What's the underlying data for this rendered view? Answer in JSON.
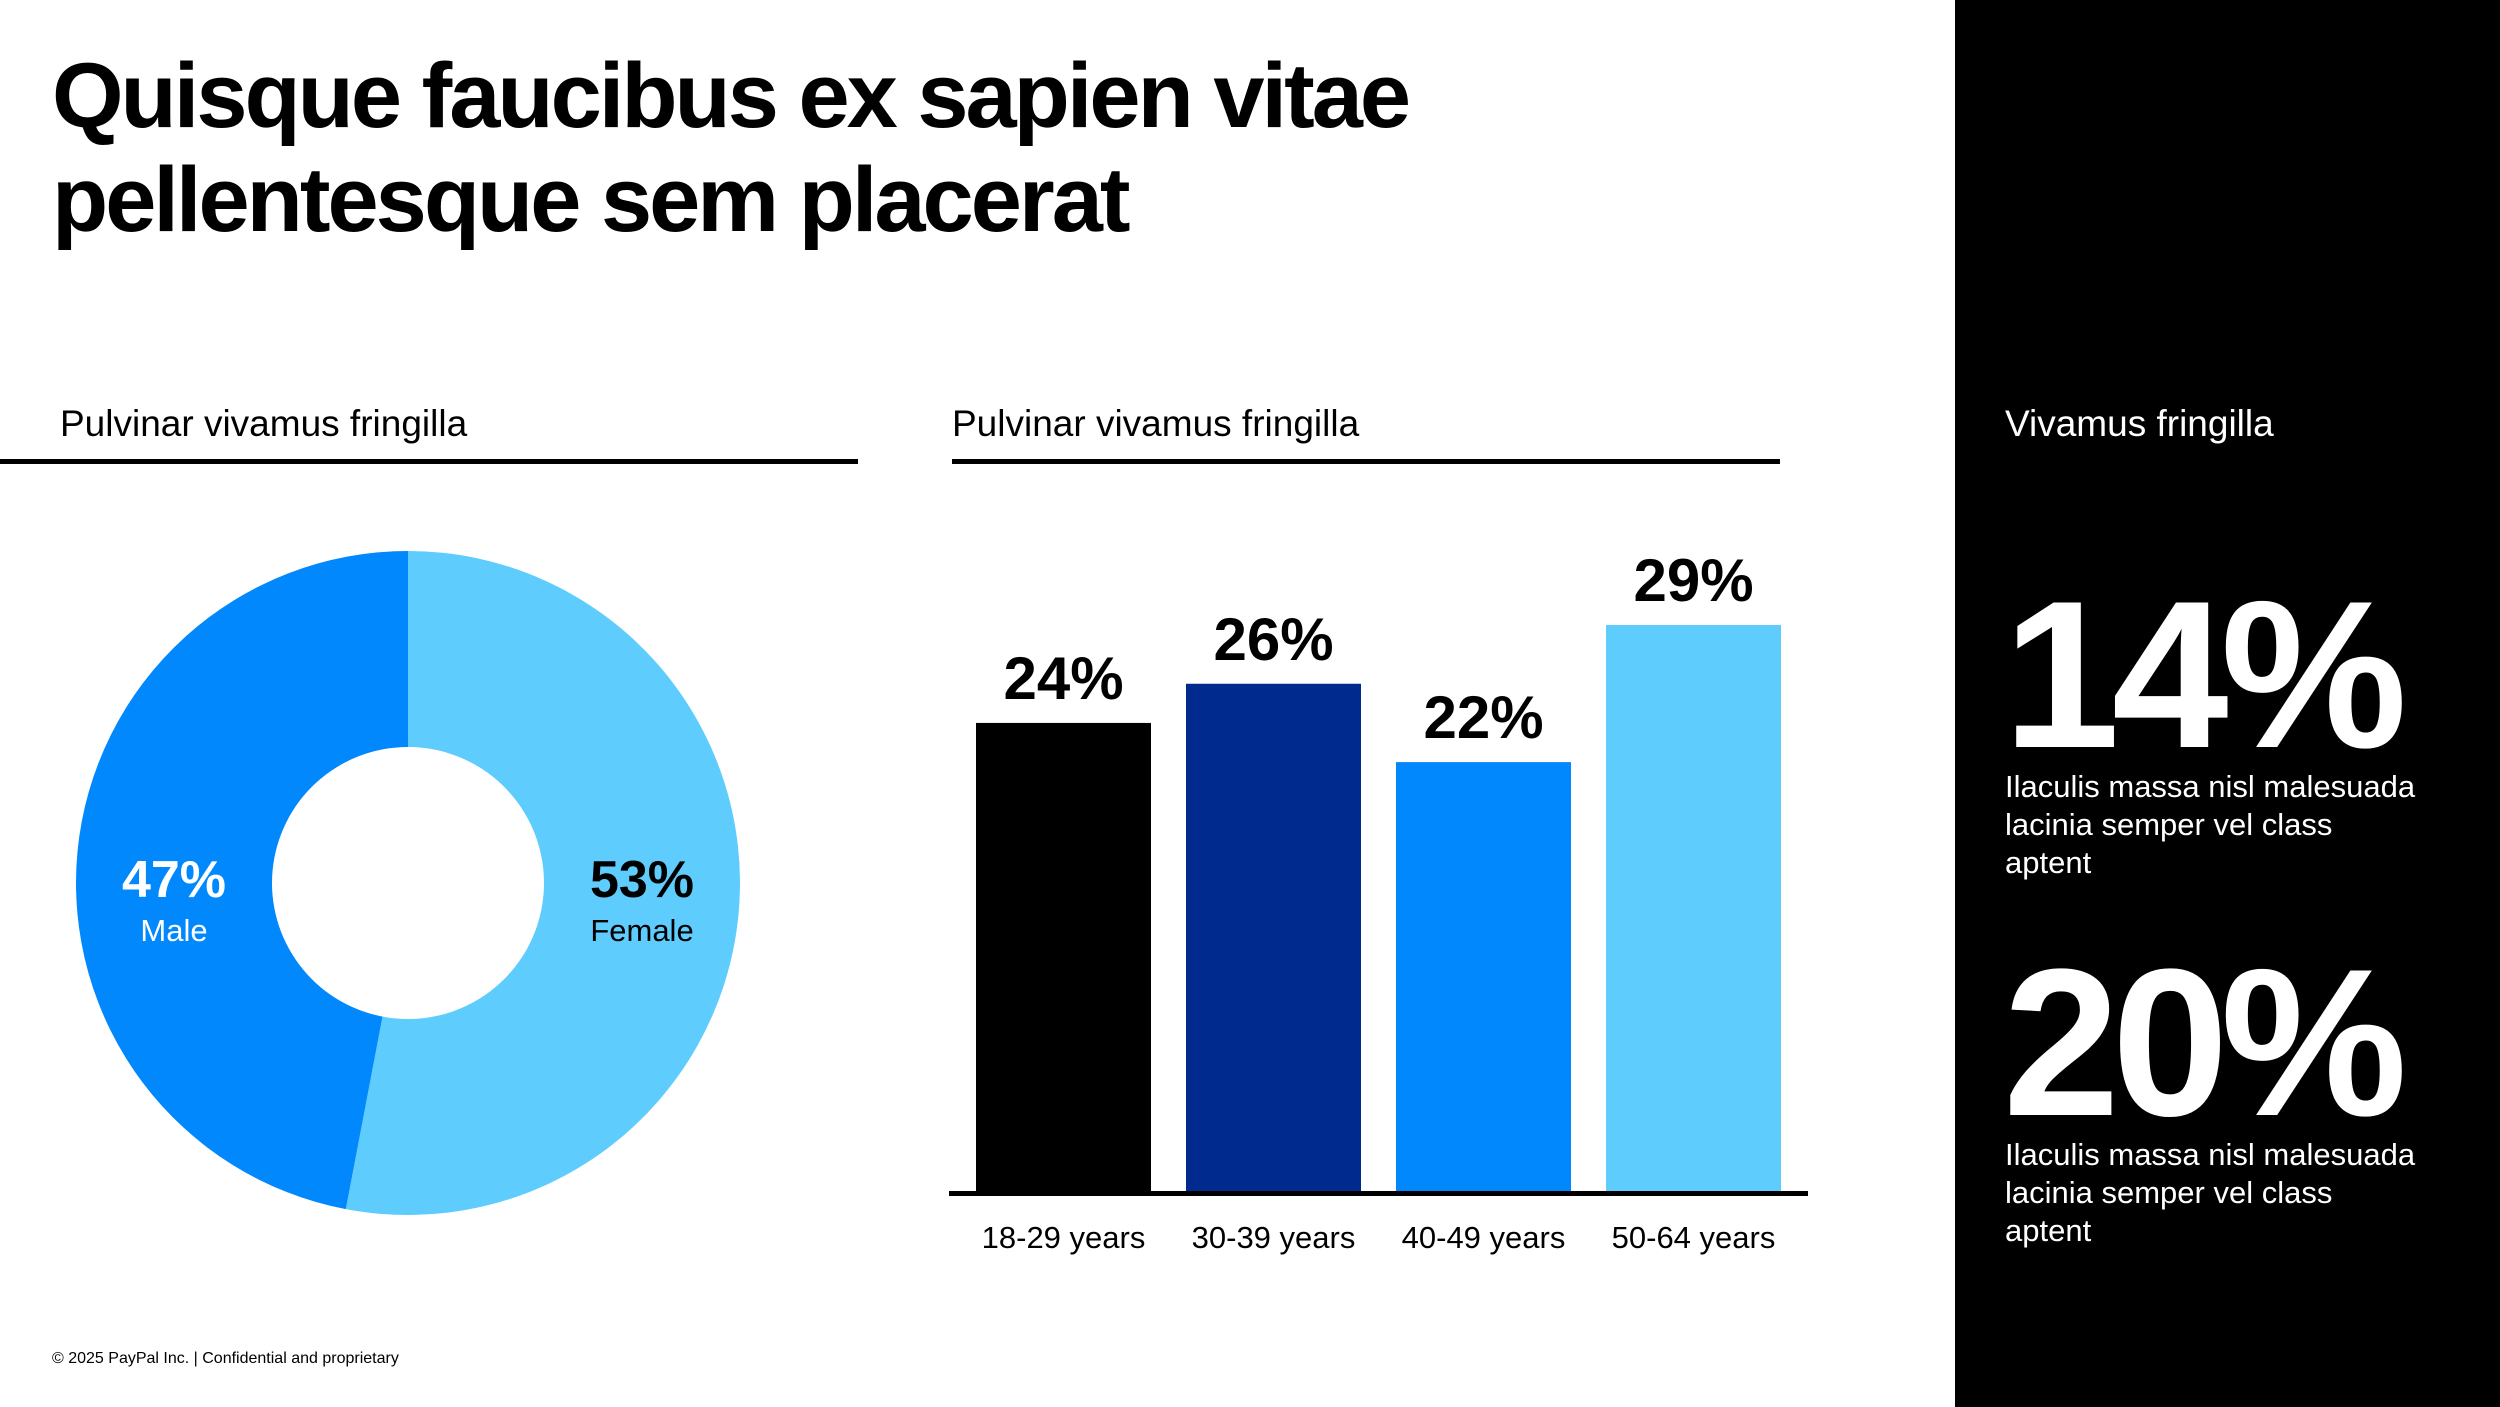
{
  "title_line1": "Quisque faucibus ex sapien vitae",
  "title_line2": "pellentesque sem placerat",
  "footer": "© 2025 PayPal Inc. | Confidential and proprietary",
  "colors": {
    "black": "#000000",
    "navy": "#012A8F",
    "blue": "#0288FD",
    "light_blue": "#5FCCFE"
  },
  "chart_data": [
    {
      "type": "pie",
      "variant": "donut",
      "title": "Pulvinar vivamus fringilla",
      "series": [
        {
          "name": "Male",
          "value": 47,
          "label": "47%",
          "color": "#0288FD",
          "label_color": "#ffffff"
        },
        {
          "name": "Female",
          "value": 53,
          "label": "53%",
          "color": "#5FCCFE",
          "label_color": "#000000"
        }
      ]
    },
    {
      "type": "bar",
      "title": "Pulvinar vivamus fringilla",
      "categories": [
        "18-29 years",
        "30-39 years",
        "40-49 years",
        "50-64 years"
      ],
      "values": [
        24,
        26,
        22,
        29
      ],
      "value_labels": [
        "24%",
        "26%",
        "22%",
        "29%"
      ],
      "colors": [
        "#000000",
        "#012A8F",
        "#0288FD",
        "#5FCCFE"
      ],
      "ylim": [
        0,
        29
      ],
      "xlabel": "",
      "ylabel": ""
    }
  ],
  "sidebar": {
    "heading": "Vivamus fringilla",
    "stats": [
      {
        "value": "14%",
        "label": "Ilaculis massa nisl malesuada lacinia semper vel class aptent"
      },
      {
        "value": "20%",
        "label": "Ilaculis massa nisl malesuada lacinia semper vel class aptent"
      }
    ]
  }
}
